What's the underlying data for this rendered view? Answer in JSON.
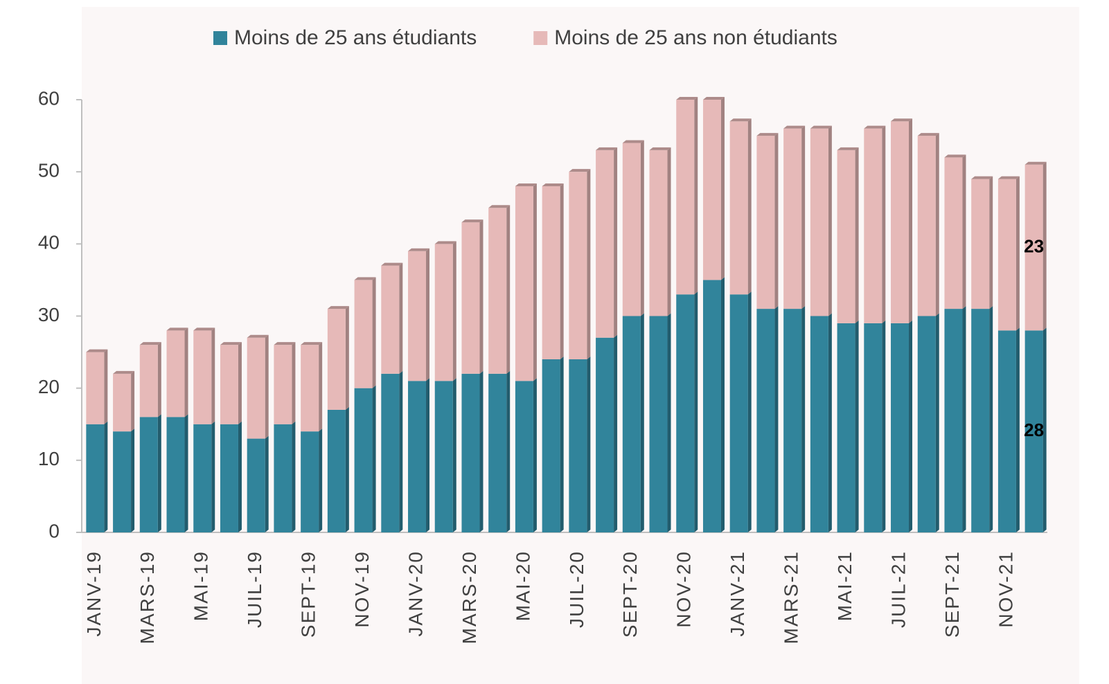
{
  "chart_data": {
    "type": "stacked_bar",
    "categories": [
      "JANV-19",
      null,
      "MARS-19",
      null,
      "MAI-19",
      null,
      "JUIL-19",
      null,
      "SEPT-19",
      null,
      "NOV-19",
      null,
      "JANV-20",
      null,
      "MARS-20",
      null,
      "MAI-20",
      null,
      "JUIL-20",
      null,
      "SEPT-20",
      null,
      "NOV-20",
      null,
      "JANV-21",
      null,
      "MARS-21",
      null,
      "MAI-21",
      null,
      "JUIL-21",
      null,
      "SEPT-21",
      null,
      "NOV-21",
      null
    ],
    "series": [
      {
        "name": "Moins de 25 ans étudiants",
        "color": "#31849b",
        "values": [
          15,
          14,
          16,
          16,
          15,
          15,
          13,
          15,
          14,
          17,
          20,
          22,
          21,
          21,
          22,
          22,
          21,
          24,
          24,
          27,
          30,
          30,
          33,
          35,
          33,
          31,
          31,
          30,
          29,
          29,
          29,
          30,
          31,
          31,
          28,
          28
        ],
        "value_labels": [
          null,
          null,
          null,
          null,
          null,
          null,
          null,
          null,
          null,
          null,
          null,
          null,
          null,
          null,
          null,
          null,
          null,
          null,
          null,
          null,
          null,
          null,
          null,
          null,
          null,
          null,
          null,
          null,
          null,
          null,
          null,
          null,
          null,
          null,
          null,
          "28"
        ]
      },
      {
        "name": "Moins de 25 ans non étudiants",
        "color": "#e6b9b8",
        "values": [
          10,
          8,
          10,
          12,
          13,
          11,
          14,
          11,
          12,
          14,
          15,
          15,
          18,
          19,
          21,
          23,
          27,
          24,
          26,
          26,
          24,
          23,
          27,
          25,
          24,
          24,
          25,
          26,
          24,
          27,
          28,
          25,
          21,
          18,
          21,
          23
        ],
        "value_labels": [
          null,
          null,
          null,
          null,
          null,
          null,
          null,
          null,
          null,
          null,
          null,
          null,
          null,
          null,
          null,
          null,
          null,
          null,
          null,
          null,
          null,
          null,
          null,
          null,
          null,
          null,
          null,
          null,
          null,
          null,
          null,
          null,
          null,
          null,
          null,
          "23"
        ]
      }
    ],
    "ylim": [
      0,
      60
    ],
    "yticks": [
      0,
      10,
      20,
      30,
      40,
      50,
      60
    ],
    "legend": "top"
  }
}
